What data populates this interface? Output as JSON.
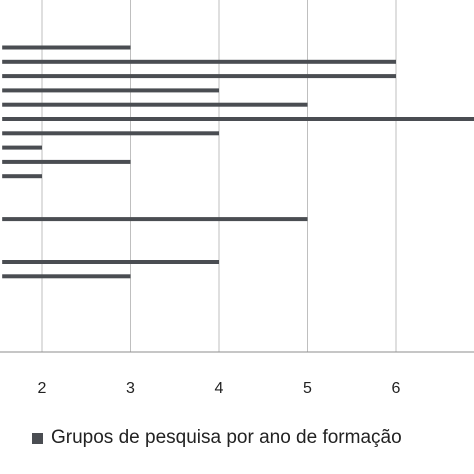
{
  "chart_data": {
    "type": "bar",
    "orientation": "horizontal",
    "title": "",
    "xlabel": "",
    "ylabel": "",
    "xlim": [
      1.55,
      6.9
    ],
    "x_ticks": [
      2,
      3,
      4,
      5,
      6
    ],
    "grid": true,
    "legend_placement": "bottom",
    "bar_color": "#4a4d52",
    "grid_color": "#bfbfbf",
    "axis_color": "#8c8c8c",
    "series": [
      {
        "name": "Grupos de pesquisa por ano de formação",
        "values": [
          3,
          6,
          6,
          4,
          5,
          7,
          4,
          2,
          3,
          2,
          null,
          null,
          5,
          null,
          null,
          4,
          3,
          null,
          null,
          null,
          null,
          null,
          null
        ]
      }
    ]
  }
}
